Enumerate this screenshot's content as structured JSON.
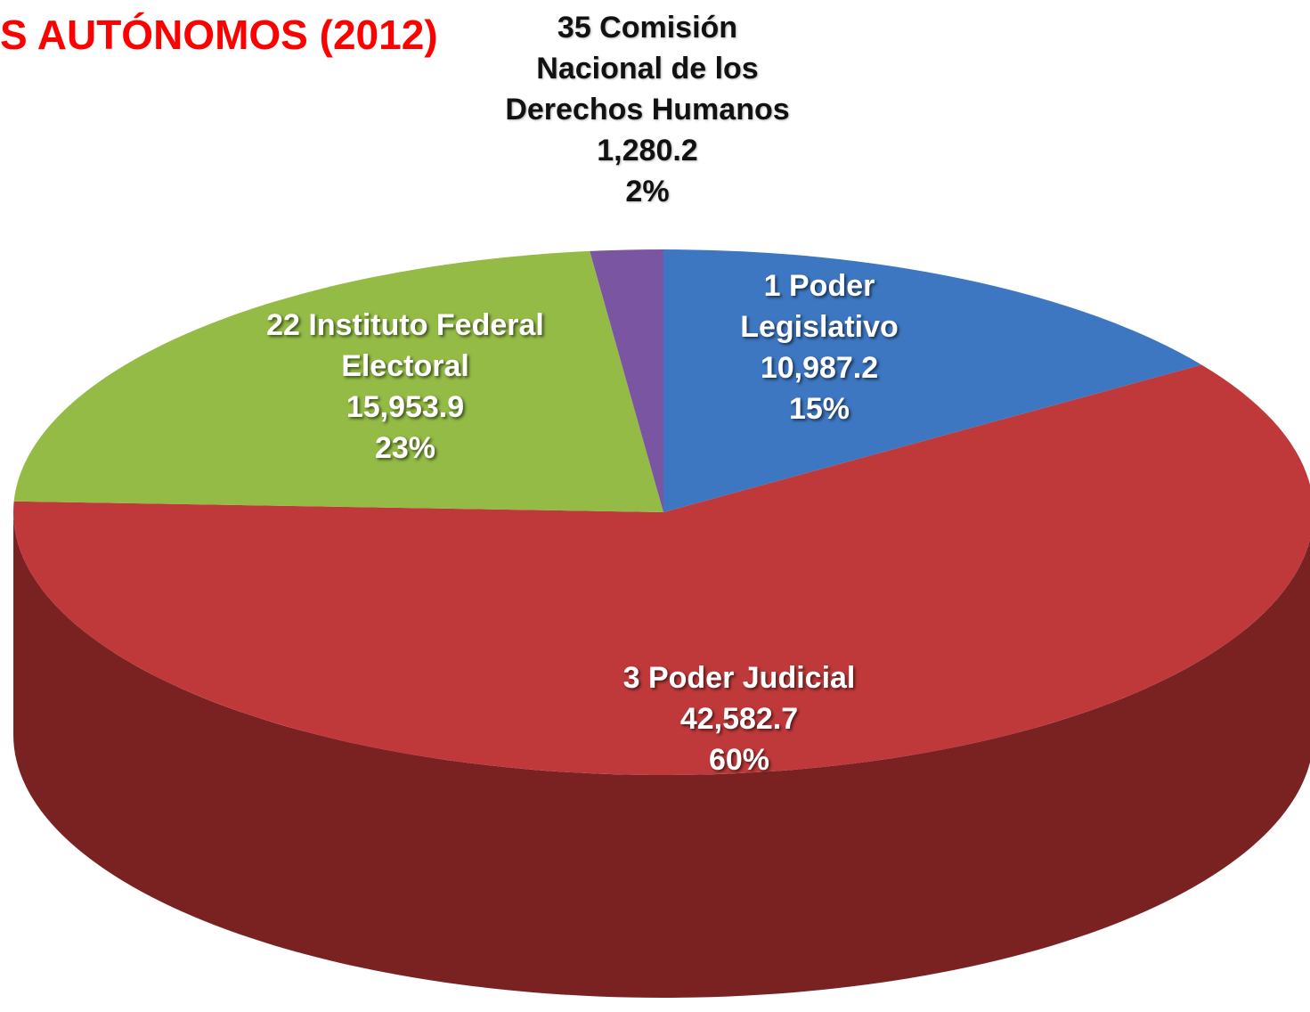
{
  "chart_data": {
    "type": "pie3d",
    "title": "S AUTÓNOMOS (2012)",
    "categories": [
      "1 Poder Legislativo",
      "3 Poder Judicial",
      "22 Instituto Federal Electoral",
      "35 Comisión Nacional de los Derechos Humanos"
    ],
    "values": [
      10987.2,
      42582.7,
      15953.9,
      1280.2
    ],
    "value_labels": [
      "10,987.2",
      "42,582.7",
      "15,953.9",
      "1,280.2"
    ],
    "percent_labels": [
      "15%",
      "60%",
      "23%",
      "2%"
    ],
    "colors": [
      "#3d77c2",
      "#c0393a",
      "#93bb45",
      "#7a55a1"
    ],
    "side_colors": [
      "#24497a",
      "#7a2222",
      "#5a7a28",
      "#4a3266"
    ]
  }
}
